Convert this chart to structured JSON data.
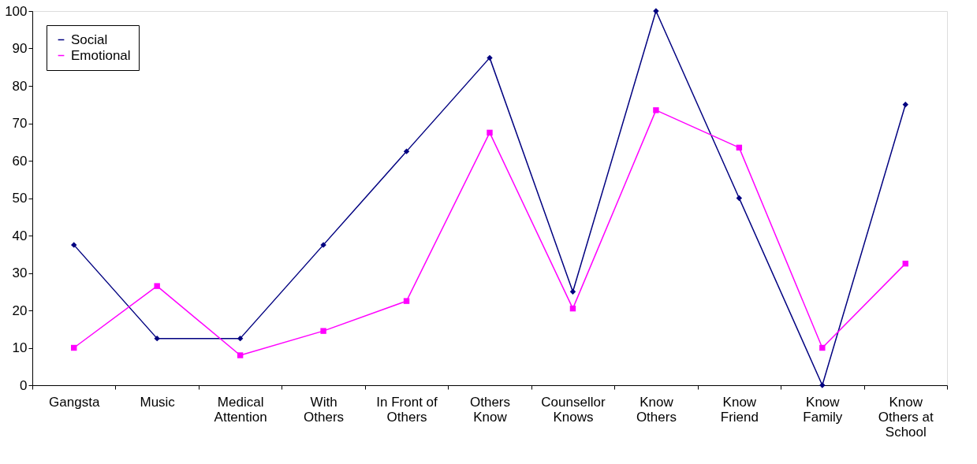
{
  "chart_data": {
    "type": "line",
    "categories": [
      "Gangsta",
      "Music",
      "Medical\nAttention",
      "With\nOthers",
      "In Front of\nOthers",
      "Others\nKnow",
      "Counsellor\nKnows",
      "Know\nOthers",
      "Know\nFriend",
      "Know\nFamily",
      "Know\nOthers at\nSchool"
    ],
    "series": [
      {
        "name": "Social",
        "color": "#000080",
        "marker": "diamond",
        "values": [
          37.5,
          12.5,
          12.5,
          37.5,
          62.5,
          87.5,
          25,
          100,
          50,
          0,
          75
        ]
      },
      {
        "name": "Emotional",
        "color": "#ff00ff",
        "marker": "square",
        "values": [
          10,
          26.5,
          8,
          14.5,
          22.5,
          67.5,
          20.5,
          73.5,
          63.5,
          10,
          32.5
        ]
      }
    ],
    "ylim": [
      0,
      100
    ],
    "yticks": [
      0,
      10,
      20,
      30,
      40,
      50,
      60,
      70,
      80,
      90,
      100
    ],
    "grid": false,
    "legend": "top left",
    "line_style": "solid"
  }
}
